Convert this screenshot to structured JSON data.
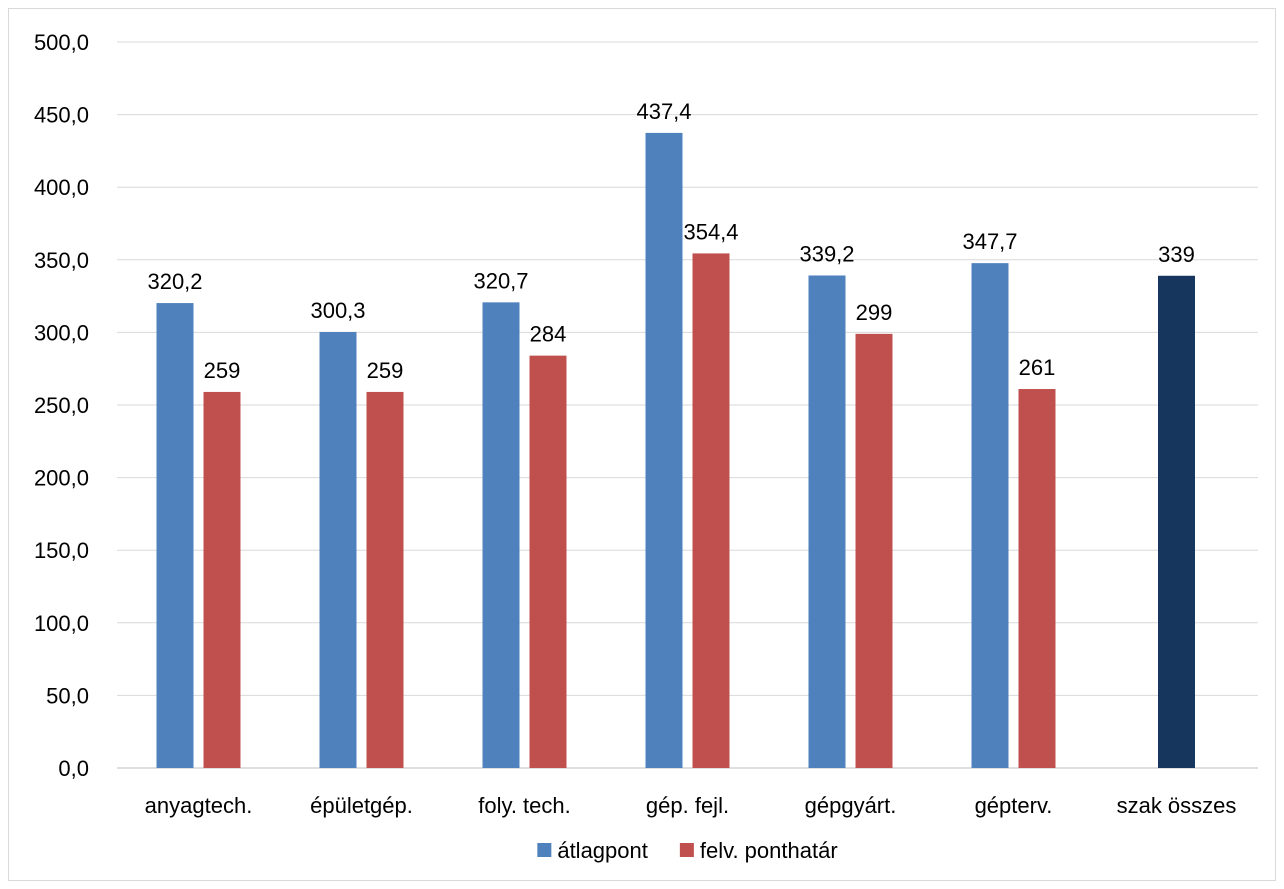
{
  "chart_data": {
    "type": "bar",
    "title": "",
    "xlabel": "",
    "ylabel": "",
    "ylim": [
      0,
      500
    ],
    "ytick_step": 50,
    "ytick_labels": [
      "0,0",
      "50,0",
      "100,0",
      "150,0",
      "200,0",
      "250,0",
      "300,0",
      "350,0",
      "400,0",
      "450,0",
      "500,0"
    ],
    "grid": true,
    "legend_position": "bottom",
    "categories": [
      "anyagtech.",
      "épületgép.",
      "foly. tech.",
      "gép. fejl.",
      "gépgyárt.",
      "gépterv.",
      "szak összes"
    ],
    "series": [
      {
        "name": "átlagpont",
        "color": "#4F81BD",
        "values": [
          320.2,
          300.3,
          320.7,
          437.4,
          339.2,
          347.7,
          null
        ],
        "labels": [
          "320,2",
          "300,3",
          "320,7",
          "437,4",
          "339,2",
          "347,7",
          ""
        ]
      },
      {
        "name": "felv. ponthatár",
        "color": "#C0504D",
        "values": [
          259,
          259,
          284,
          354.4,
          299,
          261,
          null
        ],
        "labels": [
          "259",
          "259",
          "284",
          "354,4",
          "299",
          "261",
          ""
        ]
      }
    ],
    "total": {
      "category": "szak összes",
      "value": 339,
      "label": "339",
      "color": "#17365D"
    }
  }
}
